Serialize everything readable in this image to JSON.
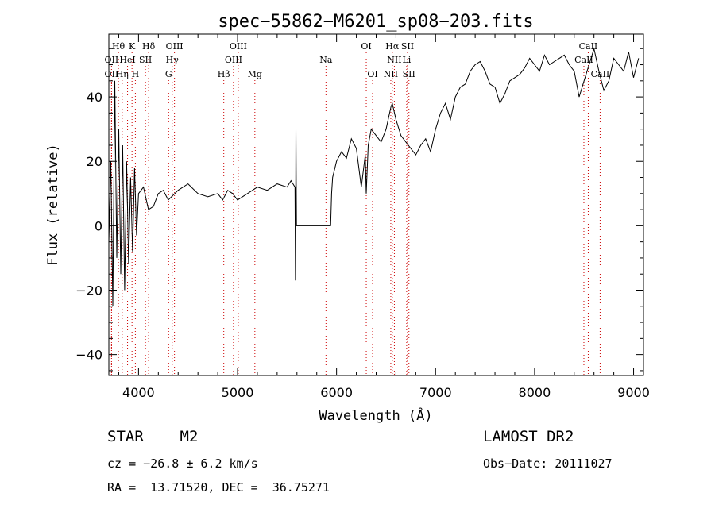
{
  "chart_data": {
    "type": "line",
    "title": "spec−55862−M6201_sp08−203.fits",
    "xlabel": "Wavelength (Å)",
    "ylabel": "Flux (relative)",
    "xlim": [
      3700,
      9100
    ],
    "ylim": [
      -46.5,
      59.5
    ],
    "xticks": [
      {
        "value": 4000,
        "label": "4000"
      },
      {
        "value": 5000,
        "label": "5000"
      },
      {
        "value": 6000,
        "label": "6000"
      },
      {
        "value": 7000,
        "label": "7000"
      },
      {
        "value": 8000,
        "label": "8000"
      },
      {
        "value": 9000,
        "label": "9000"
      }
    ],
    "yticks": [
      {
        "value": -40,
        "label": "−40"
      },
      {
        "value": -20,
        "label": "−20"
      },
      {
        "value": 0,
        "label": "0"
      },
      {
        "value": 20,
        "label": "20"
      },
      {
        "value": 40,
        "label": "40"
      }
    ],
    "grid": false,
    "colors": {
      "spectrum": "#000000",
      "lines": "#cc0000",
      "axes": "#000000"
    },
    "series": [
      {
        "x": [
          3700,
          3720,
          3740,
          3760,
          3780,
          3800,
          3820,
          3840,
          3860,
          3880,
          3900,
          3920,
          3940,
          3960,
          3980,
          4000,
          4050,
          4100,
          4150,
          4200,
          4250,
          4300,
          4400,
          4500,
          4600,
          4700,
          4800,
          4850,
          4900,
          4950,
          5000,
          5100,
          5200,
          5300,
          5400,
          5500,
          5540,
          5560,
          5580,
          5585,
          5590,
          5595,
          5600,
          5620,
          5700,
          5800,
          5900,
          5940,
          5950,
          5960,
          6000,
          6050,
          6100,
          6150,
          6200,
          6250,
          6290,
          6300,
          6320,
          6350,
          6400,
          6450,
          6500,
          6550,
          6563,
          6600,
          6650,
          6700,
          6750,
          6800,
          6850,
          6900,
          6950,
          7000,
          7050,
          7100,
          7150,
          7200,
          7250,
          7300,
          7350,
          7400,
          7450,
          7500,
          7550,
          7600,
          7650,
          7700,
          7750,
          7800,
          7850,
          7900,
          7950,
          8000,
          8050,
          8100,
          8150,
          8200,
          8250,
          8300,
          8350,
          8400,
          8450,
          8500,
          8550,
          8600,
          8650,
          8700,
          8750,
          8800,
          8850,
          8900,
          8950,
          9000,
          9050
        ],
        "y": [
          -5,
          20,
          -25,
          45,
          -10,
          30,
          -15,
          25,
          -20,
          20,
          -12,
          15,
          -8,
          18,
          -3,
          10,
          12,
          5,
          6,
          10,
          11,
          8,
          11,
          13,
          10,
          9,
          10,
          8,
          11,
          10,
          8,
          10,
          12,
          11,
          13,
          12,
          14,
          13,
          12,
          -17,
          30,
          0,
          0,
          0,
          0,
          0,
          0,
          0,
          10,
          15,
          20,
          23,
          21,
          27,
          24,
          12,
          22,
          10,
          25,
          30,
          28,
          26,
          30,
          37,
          38,
          33,
          28,
          26,
          24,
          22,
          25,
          27,
          23,
          30,
          35,
          38,
          33,
          40,
          43,
          44,
          48,
          50,
          51,
          48,
          44,
          43,
          38,
          41,
          45,
          46,
          47,
          49,
          52,
          50,
          48,
          53,
          50,
          51,
          52,
          53,
          50,
          48,
          40,
          45,
          50,
          55,
          48,
          42,
          45,
          52,
          50,
          48,
          54,
          46,
          52
        ]
      }
    ],
    "spectral_lines": [
      {
        "label": "Hθ",
        "wave": 3797,
        "row": 1
      },
      {
        "label": "K",
        "wave": 3934,
        "row": 1
      },
      {
        "label": "Hδ",
        "wave": 4102,
        "row": 1
      },
      {
        "label": "OIII",
        "wave": 4363,
        "row": 1
      },
      {
        "label": "OIII",
        "wave": 5007,
        "row": 1
      },
      {
        "label": "OI",
        "wave": 6300,
        "row": 1
      },
      {
        "label": "Hα",
        "wave": 6563,
        "row": 1
      },
      {
        "label": "SII",
        "wave": 6717,
        "row": 1
      },
      {
        "label": "CaII",
        "wave": 8542,
        "row": 1
      },
      {
        "label": "OII",
        "wave": 3727,
        "row": 2
      },
      {
        "label": "HeI",
        "wave": 3889,
        "row": 2
      },
      {
        "label": "SII",
        "wave": 4070,
        "row": 2
      },
      {
        "label": "Hγ",
        "wave": 4340,
        "row": 2
      },
      {
        "label": "OIII",
        "wave": 4959,
        "row": 2
      },
      {
        "label": "Na",
        "wave": 5893,
        "row": 2
      },
      {
        "label": "NII",
        "wave": 6584,
        "row": 2
      },
      {
        "label": "Li",
        "wave": 6708,
        "row": 2
      },
      {
        "label": "CaII",
        "wave": 8498,
        "row": 2
      },
      {
        "label": "OII",
        "wave": 3727,
        "row": 3
      },
      {
        "label": "Hη",
        "wave": 3835,
        "row": 3
      },
      {
        "label": "H",
        "wave": 3968,
        "row": 3
      },
      {
        "label": "G",
        "wave": 4304,
        "row": 3
      },
      {
        "label": "Hβ",
        "wave": 4861,
        "row": 3
      },
      {
        "label": "Mg",
        "wave": 5175,
        "row": 3
      },
      {
        "label": "OI",
        "wave": 6364,
        "row": 3
      },
      {
        "label": "NII",
        "wave": 6548,
        "row": 3
      },
      {
        "label": "SII",
        "wave": 6731,
        "row": 3
      },
      {
        "label": "CaII",
        "wave": 8662,
        "row": 3
      }
    ]
  },
  "info": {
    "class_line": "STAR    M2",
    "survey": "LAMOST DR2",
    "redshift": "cz = −26.8 ± 6.2 km/s",
    "obs_date": "Obs−Date: 20111027",
    "coords": "RA =  13.71520, DEC =  36.75271"
  }
}
